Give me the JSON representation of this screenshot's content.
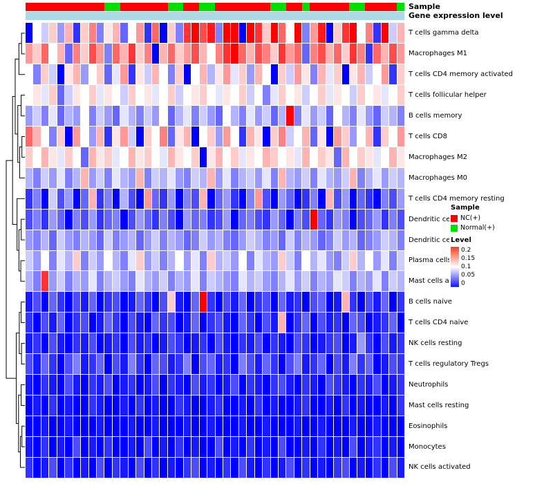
{
  "annotation": {
    "sample_label": "Sample",
    "gene_label": "Gene expression level",
    "sample_colors": {
      "NC": "#ff0000",
      "Normal": "#00dd00"
    },
    "gene_bar_color": "#add8e6",
    "samples": [
      "NC",
      "NC",
      "NC",
      "NC",
      "NC",
      "NC",
      "NC",
      "NC",
      "NC",
      "NC",
      "Normal",
      "Normal",
      "NC",
      "NC",
      "NC",
      "NC",
      "NC",
      "NC",
      "Normal",
      "Normal",
      "NC",
      "NC",
      "Normal",
      "Normal",
      "NC",
      "NC",
      "NC",
      "NC",
      "NC",
      "NC",
      "NC",
      "Normal",
      "Normal",
      "NC",
      "NC",
      "Normal",
      "NC",
      "NC",
      "NC",
      "NC",
      "NC",
      "Normal",
      "Normal",
      "NC",
      "NC",
      "NC",
      "NC",
      "Normal"
    ]
  },
  "legend": {
    "sample_title": "Sample",
    "sample_items": [
      {
        "label": "NC(+)",
        "color": "#ff0000"
      },
      {
        "label": "Normal(+)",
        "color": "#00dd00"
      }
    ],
    "level_title": "Level",
    "level_ticks": [
      "0.2",
      "0.15",
      "0.1",
      "0.05",
      "0"
    ]
  },
  "chart_data": {
    "type": "heatmap",
    "title": "",
    "legend_position": "right",
    "columns": 48,
    "rows": [
      "T cells gamma delta",
      "Macrophages M1",
      "T cells CD4 memory activated",
      "T cells follicular helper",
      "B cells memory",
      "T cells CD8",
      "Macrophages M2",
      "Macrophages M0",
      "T cells CD4 memory resting",
      "Dendritic cells activated",
      "Dendritic cells resting",
      "Plasma cells",
      "Mast cells activated",
      "B cells naive",
      "T cells CD4 naive",
      "NK cells resting",
      "T cells regulatory Tregs",
      "Neutrophils",
      "Mast cells resting",
      "Eosinophils",
      "Monocytes",
      "NK cells activated"
    ],
    "colormap": {
      "min": 0,
      "mid": 0.1,
      "max": 0.2,
      "min_color": "#0000fe",
      "mid_color": "#ffffff",
      "max_color": "#ff0000"
    },
    "values": [
      [
        0,
        0.1,
        0.08,
        0.12,
        0.06,
        0.13,
        0.02,
        0.12,
        0.15,
        0.05,
        0.11,
        0.13,
        0.04,
        0.1,
        0.14,
        0.02,
        0.16,
        0,
        0.12,
        0.05,
        0.18,
        0.2,
        0.17,
        0.19,
        0.05,
        0.22,
        0.2,
        0,
        0.21,
        0.18,
        0.12,
        0.2,
        0.16,
        0.1,
        0.2,
        0.05,
        0.14,
        0.19,
        0,
        0.12,
        0.18,
        0.2,
        0.1,
        0.15,
        0.02,
        0.2,
        0.08,
        0.13
      ],
      [
        0.14,
        0.12,
        0.16,
        0.1,
        0.13,
        0.04,
        0.15,
        0.12,
        0.17,
        0.14,
        0.05,
        0.16,
        0.13,
        0.18,
        0.12,
        0.15,
        0,
        0.13,
        0.16,
        0.12,
        0.14,
        0.17,
        0.13,
        0.1,
        0.15,
        0.18,
        0.2,
        0.16,
        0.13,
        0.17,
        0.15,
        0.12,
        0.18,
        0.14,
        0.16,
        0.04,
        0.15,
        0.17,
        0.13,
        0.16,
        0.12,
        0.18,
        0.15,
        0.02,
        0.16,
        0.13,
        0.17,
        0.14
      ],
      [
        0.1,
        0.05,
        0.12,
        0.08,
        0,
        0.11,
        0.13,
        0.06,
        0.1,
        0.12,
        0.04,
        0.09,
        0.14,
        0.02,
        0.11,
        0.08,
        0.13,
        0.1,
        0.05,
        0.12,
        0,
        0.1,
        0.13,
        0.07,
        0.11,
        0.14,
        0.09,
        0.12,
        0.06,
        0.13,
        0.1,
        0,
        0.12,
        0.08,
        0.14,
        0.11,
        0.05,
        0.13,
        0.09,
        0.12,
        0,
        0.11,
        0.13,
        0.08,
        0.1,
        0.14,
        0.02,
        0.12
      ],
      [
        0.1,
        0.11,
        0.09,
        0.12,
        0.04,
        0.08,
        0.11,
        0.1,
        0.12,
        0.09,
        0.11,
        0.1,
        0.08,
        0.12,
        0.1,
        0.11,
        0.09,
        0.1,
        0.12,
        0.08,
        0.1,
        0.11,
        0.12,
        0.1,
        0.09,
        0.11,
        0.1,
        0.12,
        0.08,
        0.1,
        0.05,
        0.09,
        0.12,
        0.1,
        0.11,
        0.08,
        0.1,
        0.12,
        0.09,
        0.11,
        0.1,
        0.08,
        0.12,
        0.1,
        0.11,
        0.09,
        0.1,
        0.12
      ],
      [
        0.06,
        0.08,
        0.05,
        0.09,
        0.04,
        0.07,
        0.06,
        0.1,
        0.05,
        0.08,
        0.06,
        0.04,
        0.09,
        0.07,
        0.05,
        0.08,
        0.06,
        0.1,
        0.04,
        0.07,
        0.09,
        0.05,
        0.08,
        0.06,
        0.04,
        0.1,
        0.07,
        0.05,
        0.09,
        0.06,
        0.08,
        0.04,
        0.07,
        0.2,
        0.05,
        0.09,
        0.06,
        0.08,
        0.04,
        0.1,
        0.07,
        0.05,
        0.09,
        0.06,
        0.04,
        0.08,
        0.07,
        0.05
      ],
      [
        0.16,
        0.13,
        0.1,
        0.05,
        0.12,
        0,
        0.14,
        0.1,
        0.06,
        0.13,
        0.02,
        0.11,
        0.14,
        0.08,
        0,
        0.12,
        0.1,
        0.15,
        0.04,
        0.11,
        0.13,
        0,
        0.1,
        0.12,
        0.06,
        0.14,
        0.1,
        0.02,
        0.13,
        0.11,
        0,
        0.12,
        0.15,
        0.08,
        0.1,
        0.13,
        0.04,
        0.11,
        0,
        0.14,
        0.12,
        0.06,
        0.1,
        0.13,
        0.02,
        0.12,
        0.1,
        0.14
      ],
      [
        0.12,
        0.1,
        0.13,
        0.11,
        0.09,
        0.12,
        0.1,
        0.04,
        0.13,
        0.11,
        0.12,
        0.09,
        0.1,
        0.13,
        0.11,
        0.12,
        0.1,
        0.09,
        0.13,
        0.11,
        0.1,
        0.12,
        0,
        0.11,
        0.13,
        0.1,
        0.12,
        0.09,
        0.11,
        0.1,
        0.13,
        0.12,
        0.1,
        0.11,
        0.09,
        0.13,
        0.1,
        0.12,
        0.11,
        0.04,
        0.13,
        0.1,
        0.12,
        0.11,
        0.09,
        0.1,
        0.13,
        0.11
      ],
      [
        0.07,
        0.05,
        0.08,
        0.06,
        0.09,
        0.05,
        0.07,
        0.13,
        0.06,
        0.08,
        0.05,
        0.09,
        0.07,
        0.06,
        0.13,
        0.05,
        0.08,
        0.07,
        0.09,
        0.06,
        0.05,
        0.08,
        0.07,
        0.13,
        0.06,
        0.09,
        0.05,
        0.07,
        0.08,
        0.06,
        0.09,
        0.05,
        0.13,
        0.07,
        0.06,
        0.08,
        0.05,
        0.09,
        0.07,
        0.06,
        0.08,
        0.13,
        0.05,
        0.07,
        0.09,
        0.06,
        0.08,
        0.07
      ],
      [
        0.02,
        0.05,
        0,
        0.08,
        0.03,
        0.06,
        0,
        0.04,
        0.13,
        0.02,
        0.05,
        0,
        0.07,
        0.03,
        0,
        0.14,
        0.04,
        0.02,
        0.06,
        0,
        0.05,
        0.03,
        0.13,
        0,
        0.04,
        0.06,
        0.02,
        0,
        0.05,
        0.14,
        0.03,
        0,
        0.06,
        0.04,
        0,
        0.02,
        0.05,
        0,
        0.13,
        0.03,
        0.06,
        0,
        0.04,
        0.02,
        0,
        0.05,
        0.03,
        0.06
      ],
      [
        0.03,
        0.05,
        0.02,
        0.06,
        0.04,
        0,
        0.05,
        0.03,
        0.06,
        0.02,
        0.04,
        0.05,
        0,
        0.03,
        0.06,
        0.04,
        0.02,
        0.05,
        0.03,
        0,
        0.06,
        0.04,
        0.05,
        0.02,
        0.03,
        0.06,
        0,
        0.04,
        0.05,
        0.03,
        0.02,
        0.06,
        0.04,
        0,
        0.05,
        0.03,
        0.2,
        0.04,
        0.02,
        0.06,
        0.05,
        0,
        0.03,
        0.04,
        0.06,
        0.02,
        0.05,
        0.03
      ],
      [
        0.06,
        0.05,
        0.07,
        0.04,
        0.08,
        0.06,
        0.05,
        0.07,
        0.06,
        0.04,
        0.08,
        0.05,
        0.06,
        0.07,
        0.04,
        0.06,
        0.08,
        0.05,
        0.07,
        0.06,
        0.04,
        0.05,
        0.08,
        0.06,
        0.07,
        0.05,
        0.04,
        0.06,
        0.08,
        0.07,
        0.05,
        0.06,
        0.04,
        0.08,
        0.05,
        0.07,
        0.06,
        0.04,
        0.05,
        0.08,
        0.06,
        0.07,
        0.04,
        0.05,
        0.06,
        0.08,
        0.07,
        0.05
      ],
      [
        0.08,
        0.06,
        0.1,
        0.05,
        0.09,
        0.07,
        0.12,
        0.05,
        0.08,
        0.06,
        0.1,
        0.07,
        0.05,
        0.09,
        0.12,
        0.06,
        0.08,
        0.05,
        0.07,
        0.1,
        0.06,
        0.09,
        0.05,
        0.12,
        0.07,
        0.08,
        0.06,
        0.1,
        0.05,
        0.09,
        0.07,
        0.06,
        0.12,
        0.08,
        0.05,
        0.1,
        0.07,
        0.09,
        0.06,
        0.05,
        0.08,
        0.12,
        0.07,
        0.1,
        0.06,
        0.09,
        0.05,
        0.08
      ],
      [
        0.07,
        0.05,
        0.18,
        0.06,
        0.08,
        0.05,
        0.07,
        0.06,
        0.09,
        0.05,
        0.07,
        0.08,
        0.06,
        0.05,
        0.09,
        0.07,
        0.06,
        0.08,
        0.05,
        0.07,
        0.06,
        0.09,
        0.05,
        0.08,
        0.07,
        0.06,
        0.05,
        0.09,
        0.07,
        0.08,
        0.06,
        0.05,
        0.07,
        0.09,
        0.06,
        0.08,
        0.05,
        0.07,
        0.06,
        0.09,
        0.08,
        0.05,
        0.07,
        0.06,
        0.09,
        0.05,
        0.08,
        0.07
      ],
      [
        0.01,
        0.03,
        0,
        0.04,
        0.02,
        0,
        0.03,
        0.01,
        0.04,
        0,
        0.02,
        0.03,
        0,
        0.01,
        0.04,
        0.02,
        0,
        0.03,
        0.12,
        0.01,
        0,
        0.04,
        0.2,
        0.02,
        0,
        0.03,
        0.01,
        0.04,
        0,
        0.02,
        0.03,
        0,
        0.04,
        0.01,
        0.02,
        0,
        0.03,
        0.04,
        0,
        0.01,
        0.13,
        0.02,
        0,
        0.03,
        0.01,
        0.04,
        0,
        0.02
      ],
      [
        0.02,
        0,
        0.03,
        0.01,
        0.04,
        0,
        0.02,
        0.03,
        0,
        0.01,
        0.04,
        0.02,
        0,
        0.03,
        0.01,
        0,
        0.04,
        0.02,
        0.03,
        0,
        0.01,
        0.04,
        0,
        0.02,
        0.03,
        0.01,
        0,
        0.04,
        0.02,
        0,
        0.03,
        0.01,
        0.13,
        0,
        0.02,
        0.04,
        0,
        0.03,
        0.01,
        0.02,
        0,
        0.04,
        0.03,
        0,
        0.01,
        0.02,
        0.04,
        0
      ],
      [
        0.01,
        0.02,
        0,
        0.03,
        0.01,
        0,
        0.02,
        0.01,
        0.03,
        0,
        0.01,
        0.02,
        0,
        0.03,
        0.01,
        0.02,
        0,
        0.01,
        0.03,
        0.02,
        0,
        0.01,
        0.02,
        0,
        0.03,
        0.01,
        0,
        0.02,
        0.01,
        0.03,
        0,
        0.02,
        0.01,
        0,
        0.03,
        0.02,
        0,
        0.01,
        0.02,
        0.03,
        0,
        0.01,
        0.06,
        0.02,
        0,
        0.03,
        0.01,
        0.02
      ],
      [
        0.03,
        0.01,
        0.04,
        0.02,
        0,
        0.03,
        0.05,
        0.01,
        0.02,
        0.04,
        0,
        0.03,
        0.01,
        0.05,
        0.02,
        0,
        0.04,
        0.03,
        0.01,
        0.02,
        0.05,
        0,
        0.03,
        0.04,
        0.01,
        0.02,
        0,
        0.05,
        0.03,
        0.01,
        0.04,
        0.02,
        0,
        0.03,
        0.05,
        0.01,
        0.02,
        0.04,
        0,
        0.03,
        0.01,
        0.05,
        0.02,
        0.04,
        0,
        0.01,
        0.03,
        0.02
      ],
      [
        0.01,
        0,
        0.02,
        0.01,
        0,
        0.03,
        0.01,
        0,
        0.02,
        0.01,
        0.03,
        0,
        0.01,
        0.02,
        0,
        0.01,
        0.03,
        0,
        0.02,
        0.01,
        0,
        0.03,
        0.01,
        0.02,
        0,
        0.01,
        0.03,
        0,
        0.02,
        0.01,
        0,
        0.02,
        0.03,
        0.01,
        0,
        0.02,
        0.01,
        0,
        0.03,
        0.02,
        0.01,
        0,
        0.02,
        0.01,
        0.03,
        0,
        0.01,
        0.02
      ],
      [
        0,
        0.01,
        0,
        0.02,
        0,
        0.01,
        0,
        0,
        0.02,
        0.01,
        0,
        0,
        0.01,
        0,
        0.02,
        0,
        0.01,
        0,
        0,
        0.02,
        0.01,
        0,
        0,
        0.01,
        0.02,
        0,
        0,
        0.01,
        0,
        0.02,
        0,
        0.01,
        0,
        0,
        0.01,
        0.02,
        0,
        0,
        0.01,
        0,
        0.02,
        0,
        0.01,
        0,
        0,
        0.01,
        0,
        0.02
      ],
      [
        0,
        0,
        0.01,
        0,
        0,
        0.01,
        0,
        0,
        0,
        0.01,
        0,
        0,
        0,
        0.01,
        0,
        0,
        0.01,
        0,
        0,
        0,
        0.01,
        0,
        0,
        0.01,
        0,
        0,
        0,
        0.01,
        0,
        0,
        0.01,
        0,
        0,
        0,
        0.01,
        0,
        0,
        0.01,
        0,
        0,
        0,
        0.01,
        0,
        0,
        0.01,
        0,
        0,
        0
      ],
      [
        0.01,
        0,
        0.02,
        0,
        0.01,
        0,
        0.03,
        0,
        0.01,
        0,
        0.02,
        0,
        0,
        0.01,
        0,
        0.03,
        0,
        0.01,
        0,
        0.02,
        0,
        0.01,
        0,
        0,
        0.03,
        0,
        0.01,
        0,
        0.02,
        0,
        0.01,
        0,
        0.03,
        0,
        0,
        0.01,
        0,
        0.02,
        0,
        0.01,
        0,
        0.03,
        0,
        0.01,
        0.02,
        0,
        0.01,
        0
      ],
      [
        0.02,
        0,
        0.01,
        0.03,
        0,
        0.02,
        0,
        0.01,
        0,
        0.03,
        0,
        0.02,
        0.01,
        0,
        0.03,
        0,
        0.02,
        0,
        0.01,
        0,
        0.02,
        0.03,
        0,
        0.01,
        0,
        0.02,
        0,
        0.03,
        0.01,
        0,
        0.02,
        0,
        0.01,
        0.03,
        0,
        0.02,
        0,
        0.01,
        0,
        0.02,
        0.03,
        0,
        0.01,
        0,
        0.02,
        0,
        0.03,
        0.01
      ]
    ],
    "row_dendrogram": {
      "merges": [
        [
          0,
          1,
          0.18
        ],
        [
          "m0",
          2,
          0.32
        ],
        [
          3,
          4,
          0.2
        ],
        [
          5,
          6,
          0.16
        ],
        [
          "m3",
          7,
          0.28
        ],
        [
          "m2",
          "m4",
          0.38
        ],
        [
          "m1",
          "m5",
          0.52
        ],
        [
          9,
          10,
          0.2
        ],
        [
          11,
          12,
          0.22
        ],
        [
          "m7",
          "m8",
          0.32
        ],
        [
          8,
          "m9",
          0.42
        ],
        [
          "m6",
          "m10",
          0.66
        ],
        [
          13,
          14,
          0.2
        ],
        [
          15,
          16,
          0.18
        ],
        [
          "m12",
          "m13",
          0.3
        ],
        [
          17,
          18,
          0.2
        ],
        [
          19,
          20,
          0.16
        ],
        [
          "m16",
          21,
          0.24
        ],
        [
          "m15",
          "m17",
          0.34
        ],
        [
          "m14",
          "m18",
          0.46
        ],
        [
          "m11",
          "m19",
          1.0
        ]
      ]
    }
  }
}
